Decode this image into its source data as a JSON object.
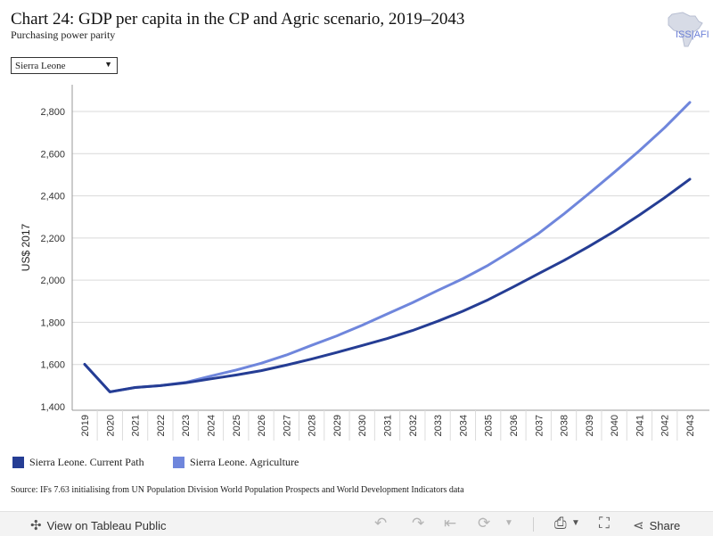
{
  "header": {
    "title": "Chart 24: GDP per capita in the CP and Agric scenario, 2019–2043",
    "subtitle": "Purchasing power parity",
    "logo_text": "ISS|AFI"
  },
  "filter": {
    "selected": "Sierra Leone",
    "arrow": "▼"
  },
  "chart_data": {
    "type": "line",
    "x": [
      2019,
      2020,
      2021,
      2022,
      2023,
      2024,
      2025,
      2026,
      2027,
      2028,
      2029,
      2030,
      2031,
      2032,
      2033,
      2034,
      2035,
      2036,
      2037,
      2038,
      2039,
      2040,
      2041,
      2042,
      2043
    ],
    "series": [
      {
        "name": "Sierra Leone. Current Path",
        "color": "#253d94",
        "values": [
          1601,
          1470,
          1491,
          1500,
          1513,
          1532,
          1550,
          1571,
          1597,
          1626,
          1657,
          1690,
          1723,
          1761,
          1805,
          1853,
          1907,
          1968,
          2031,
          2093,
          2160,
          2231,
          2309,
          2391,
          2479
        ]
      },
      {
        "name": "Sierra Leone. Agriculture",
        "color": "#6f86dc",
        "values": [
          1601,
          1470,
          1491,
          1500,
          1515,
          1545,
          1574,
          1606,
          1645,
          1691,
          1736,
          1786,
          1840,
          1893,
          1951,
          2007,
          2071,
          2144,
          2222,
          2313,
          2411,
          2511,
          2614,
          2723,
          2843
        ]
      }
    ],
    "ylabel": "US$ 2017",
    "ylim": [
      1400,
      2900
    ],
    "yticks": [
      1400,
      1600,
      1800,
      2000,
      2200,
      2400,
      2600,
      2800
    ],
    "ytick_labels": [
      "1,400",
      "1,600",
      "1,800",
      "2,000",
      "2,200",
      "2,400",
      "2,600",
      "2,800"
    ],
    "grid": true
  },
  "source": "Source: IFs 7.63 initialising from UN Population Division World Population Prospects and World Development Indicators data",
  "footer": {
    "view_label": "View on Tableau Public",
    "share_label": "Share"
  }
}
